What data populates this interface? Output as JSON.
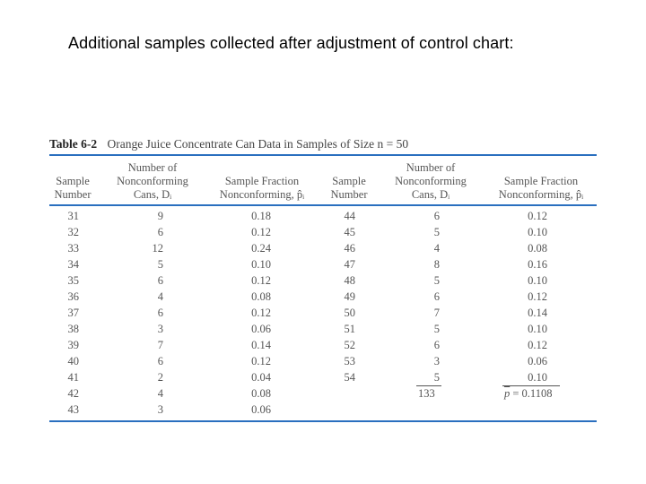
{
  "slide": {
    "title": "Additional samples collected after adjustment of control chart:"
  },
  "table": {
    "label": "Table 6-2",
    "title": "Orange Juice Concentrate Can Data in Samples of Size n = 50",
    "headers": {
      "sample_number": [
        "Sample",
        "Number"
      ],
      "nonconforming": [
        "Number of",
        "Nonconforming",
        "Cans, Dᵢ"
      ],
      "fraction": [
        "Sample Fraction",
        "Nonconforming, p̂ᵢ"
      ]
    },
    "left": {
      "samples": [
        "31",
        "32",
        "33",
        "34",
        "35",
        "36",
        "37",
        "38",
        "39",
        "40",
        "41",
        "42",
        "43"
      ],
      "counts": [
        "9",
        "6",
        "12",
        "5",
        "6",
        "4",
        "6",
        "3",
        "7",
        "6",
        "2",
        "4",
        "3"
      ],
      "fractions": [
        "0.18",
        "0.12",
        "0.24",
        "0.10",
        "0.12",
        "0.08",
        "0.12",
        "0.06",
        "0.14",
        "0.12",
        "0.04",
        "0.08",
        "0.06"
      ]
    },
    "right": {
      "samples": [
        "44",
        "45",
        "46",
        "47",
        "48",
        "49",
        "50",
        "51",
        "52",
        "53",
        "54"
      ],
      "counts": [
        "6",
        "5",
        "4",
        "8",
        "5",
        "6",
        "7",
        "5",
        "6",
        "3",
        "5"
      ],
      "fractions": [
        "0.12",
        "0.10",
        "0.08",
        "0.16",
        "0.10",
        "0.12",
        "0.14",
        "0.10",
        "0.12",
        "0.06",
        "0.10"
      ]
    },
    "totals": {
      "count_sum": "133",
      "pbar_symbol": "p",
      "pbar_value": "= 0.1108"
    }
  }
}
